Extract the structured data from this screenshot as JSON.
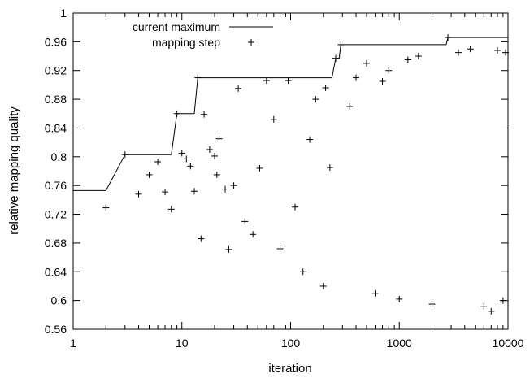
{
  "chart_data": {
    "type": "scatter",
    "xlabel": "iteration",
    "ylabel": "relative mapping quality",
    "xscale": "log",
    "xlim": [
      1,
      10000
    ],
    "ylim": [
      0.56,
      1.0
    ],
    "x_ticks": [
      1,
      10,
      100,
      1000,
      10000
    ],
    "x_tick_labels": [
      "1",
      "10",
      "100",
      "1000",
      "10000"
    ],
    "y_ticks": [
      0.56,
      0.6,
      0.64,
      0.68,
      0.72,
      0.76,
      0.8,
      0.84,
      0.88,
      0.92,
      0.96,
      1.0
    ],
    "y_tick_labels": [
      "0.56",
      "0.6",
      "0.64",
      "0.68",
      "0.72",
      "0.76",
      "0.8",
      "0.84",
      "0.88",
      "0.92",
      "0.96",
      "1"
    ],
    "grid": false,
    "legend": "top-left",
    "series": [
      {
        "name": "current maximum",
        "kind": "step-line",
        "points": [
          [
            1,
            0.753
          ],
          [
            2,
            0.753
          ],
          [
            3,
            0.803
          ],
          [
            8,
            0.803
          ],
          [
            9,
            0.86
          ],
          [
            13,
            0.86
          ],
          [
            14,
            0.91
          ],
          [
            240,
            0.91
          ],
          [
            260,
            0.937
          ],
          [
            280,
            0.937
          ],
          [
            290,
            0.956
          ],
          [
            2700,
            0.956
          ],
          [
            2800,
            0.966
          ],
          [
            10000,
            0.966
          ]
        ]
      },
      {
        "name": "mapping step",
        "kind": "scatter",
        "marker": "+",
        "points": [
          [
            2,
            0.729
          ],
          [
            3,
            0.803
          ],
          [
            4,
            0.748
          ],
          [
            5,
            0.775
          ],
          [
            6,
            0.793
          ],
          [
            7,
            0.751
          ],
          [
            8,
            0.727
          ],
          [
            9,
            0.86
          ],
          [
            10,
            0.805
          ],
          [
            11,
            0.797
          ],
          [
            12,
            0.787
          ],
          [
            13,
            0.752
          ],
          [
            14,
            0.91
          ],
          [
            15,
            0.686
          ],
          [
            16,
            0.859
          ],
          [
            18,
            0.81
          ],
          [
            20,
            0.801
          ],
          [
            21,
            0.775
          ],
          [
            22,
            0.825
          ],
          [
            25,
            0.755
          ],
          [
            27,
            0.671
          ],
          [
            30,
            0.76
          ],
          [
            33,
            0.895
          ],
          [
            38,
            0.71
          ],
          [
            45,
            0.692
          ],
          [
            52,
            0.784
          ],
          [
            60,
            0.906
          ],
          [
            70,
            0.852
          ],
          [
            80,
            0.672
          ],
          [
            95,
            0.906
          ],
          [
            110,
            0.73
          ],
          [
            130,
            0.64
          ],
          [
            150,
            0.824
          ],
          [
            170,
            0.88
          ],
          [
            200,
            0.62
          ],
          [
            210,
            0.896
          ],
          [
            230,
            0.785
          ],
          [
            260,
            0.937
          ],
          [
            290,
            0.956
          ],
          [
            350,
            0.87
          ],
          [
            400,
            0.91
          ],
          [
            500,
            0.93
          ],
          [
            600,
            0.61
          ],
          [
            700,
            0.905
          ],
          [
            800,
            0.92
          ],
          [
            1000,
            0.602
          ],
          [
            1200,
            0.935
          ],
          [
            1500,
            0.94
          ],
          [
            2000,
            0.595
          ],
          [
            2800,
            0.966
          ],
          [
            3500,
            0.945
          ],
          [
            4500,
            0.95
          ],
          [
            6000,
            0.592
          ],
          [
            7000,
            0.585
          ],
          [
            8000,
            0.948
          ],
          [
            9000,
            0.6
          ],
          [
            9500,
            0.945
          ]
        ]
      }
    ]
  }
}
